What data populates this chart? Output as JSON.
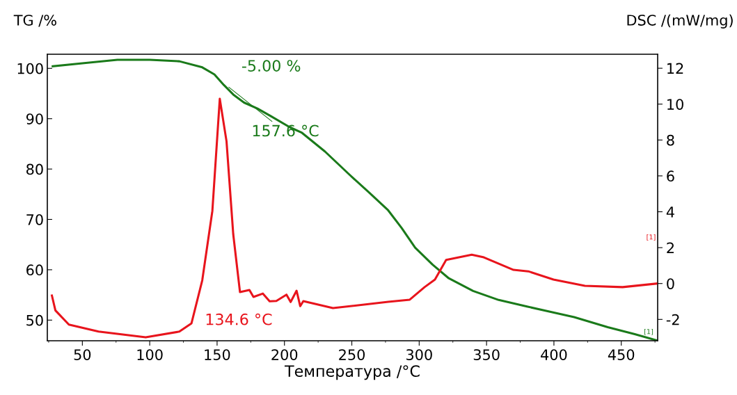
{
  "chart_data": {
    "type": "line",
    "xlabel": "Температура /°C",
    "ylabel": "TG /%",
    "y2label": "DSC /(mW/mg)",
    "xlim": [
      24,
      477
    ],
    "xticks": [
      50,
      100,
      150,
      200,
      250,
      300,
      350,
      400,
      450
    ],
    "ylim": [
      45.9,
      102.8
    ],
    "yticks": [
      50,
      60,
      70,
      80,
      90,
      100
    ],
    "y2lim": [
      -3.19,
      12.78
    ],
    "y2ticks": [
      -2,
      0,
      2,
      4,
      6,
      8,
      10,
      12
    ],
    "grid": false,
    "legend": false,
    "marker": "none",
    "line_style": "solid",
    "series": [
      {
        "color": "#1a7a1a",
        "axis": "y",
        "x": [
          28,
          50,
          76,
          100,
          122,
          139,
          148,
          155,
          162,
          170,
          180,
          190,
          204,
          213,
          230,
          249,
          263,
          277,
          287,
          297,
          310,
          322,
          340,
          359,
          380,
          400,
          415,
          440,
          460,
          476
        ],
        "values": [
          100.4,
          101.0,
          101.7,
          101.7,
          101.4,
          100.2,
          98.8,
          96.7,
          94.8,
          93.2,
          92.0,
          90.5,
          88.3,
          87.2,
          83.5,
          78.7,
          75.3,
          71.8,
          68.3,
          64.4,
          61.0,
          58.3,
          55.8,
          54.0,
          52.7,
          51.5,
          50.6,
          48.6,
          47.2,
          46.0
        ]
      },
      {
        "color": "#e8141c",
        "axis": "y2",
        "x": [
          27.4,
          30,
          40,
          62,
          97,
          122,
          131,
          139,
          146.5,
          152,
          157,
          162,
          167,
          174,
          177,
          184,
          189,
          194,
          201.5,
          204.6,
          209,
          211.7,
          214,
          236,
          277,
          293,
          304,
          311.7,
          320,
          339,
          348,
          370,
          381,
          399.7,
          423,
          451,
          476.7
        ],
        "values": [
          -0.67,
          -1.5,
          -2.29,
          -2.68,
          -3.0,
          -2.68,
          -2.22,
          0.18,
          4.05,
          10.3,
          7.93,
          2.74,
          -0.48,
          -0.36,
          -0.75,
          -0.56,
          -0.99,
          -0.97,
          -0.62,
          -1.03,
          -0.4,
          -1.26,
          -0.98,
          -1.37,
          -1.02,
          -0.9,
          -0.2,
          0.22,
          1.32,
          1.61,
          1.46,
          0.76,
          0.68,
          0.22,
          -0.13,
          -0.2,
          0.0
        ]
      }
    ],
    "annotations": [
      "-5.00 %",
      {
        "text": "157.6 °C",
        "x": 157.6,
        "y": 96.5
      },
      "134.6 °C",
      "[1]",
      {
        "text": "[1]",
        "x": 476,
        "y": 46.0
      }
    ]
  }
}
